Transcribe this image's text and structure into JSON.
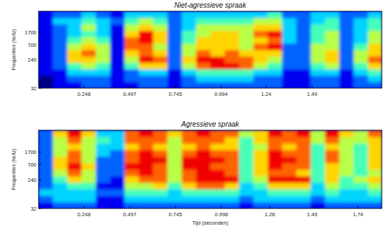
{
  "chart_data": [
    {
      "type": "heatmap",
      "title": "Niet-agressieve spraak",
      "y_label": "Frequenties (hertz)",
      "xlim": [
        0,
        1.87
      ],
      "xticks": [
        0.248,
        0.497,
        0.745,
        0.994,
        1.24,
        1.49
      ],
      "ylim": [
        32,
        8000
      ],
      "yticks": [
        32,
        240,
        700,
        1700
      ],
      "log": "y",
      "x_bins": [
        0,
        0.078,
        0.156,
        0.234,
        0.312,
        0.39,
        0.468,
        0.546,
        0.624,
        0.702,
        0.78,
        0.858,
        0.936,
        1.014,
        1.092,
        1.17,
        1.248,
        1.326,
        1.404,
        1.482,
        1.56,
        1.638,
        1.716,
        1.794,
        1.87
      ],
      "y_bins": [
        32,
        51,
        80,
        127,
        201,
        319,
        505,
        800,
        1267,
        2007,
        3180,
        5037,
        8000
      ],
      "zlim": [
        0,
        9
      ],
      "cells": [
        [
          0,
          1,
          1,
          2,
          2,
          1,
          1,
          2,
          2,
          1,
          2,
          2,
          2,
          2,
          2,
          2,
          2,
          1,
          1,
          2,
          2,
          1,
          2,
          2
        ],
        [
          0,
          1,
          2,
          2,
          2,
          1,
          2,
          2,
          2,
          1,
          2,
          3,
          3,
          3,
          3,
          2,
          2,
          1,
          1,
          2,
          2,
          1,
          2,
          3
        ],
        [
          1,
          1,
          3,
          3,
          3,
          1,
          2,
          3,
          3,
          1,
          3,
          4,
          4,
          4,
          4,
          3,
          3,
          1,
          1,
          3,
          3,
          1,
          3,
          4
        ],
        [
          1,
          2,
          4,
          5,
          4,
          1,
          4,
          6,
          6,
          2,
          5,
          7,
          8,
          8,
          7,
          5,
          4,
          2,
          2,
          4,
          5,
          2,
          4,
          6
        ],
        [
          1,
          2,
          6,
          6,
          5,
          1,
          5,
          8,
          7,
          2,
          6,
          8,
          8,
          7,
          7,
          6,
          5,
          2,
          2,
          5,
          6,
          2,
          5,
          7
        ],
        [
          1,
          2,
          6,
          7,
          5,
          1,
          6,
          7,
          6,
          2,
          5,
          7,
          6,
          7,
          6,
          6,
          6,
          2,
          2,
          5,
          6,
          2,
          5,
          6
        ],
        [
          1,
          2,
          5,
          6,
          5,
          1,
          7,
          7,
          5,
          2,
          5,
          6,
          6,
          6,
          5,
          7,
          8,
          2,
          2,
          5,
          5,
          2,
          4,
          6
        ],
        [
          1,
          2,
          4,
          5,
          4,
          1,
          7,
          8,
          6,
          2,
          4,
          6,
          6,
          6,
          5,
          6,
          7,
          3,
          2,
          4,
          5,
          2,
          3,
          5
        ],
        [
          1,
          2,
          3,
          4,
          3,
          1,
          6,
          8,
          6,
          2,
          4,
          5,
          6,
          6,
          5,
          7,
          8,
          3,
          2,
          4,
          5,
          2,
          3,
          5
        ],
        [
          1,
          2,
          3,
          5,
          3,
          1,
          5,
          6,
          5,
          2,
          3,
          5,
          5,
          5,
          5,
          6,
          6,
          3,
          2,
          4,
          4,
          2,
          3,
          4
        ],
        [
          1,
          3,
          3,
          4,
          3,
          2,
          4,
          5,
          4,
          2,
          3,
          4,
          4,
          4,
          4,
          5,
          5,
          3,
          2,
          3,
          4,
          2,
          3,
          4
        ],
        [
          1,
          2,
          2,
          3,
          2,
          1,
          3,
          3,
          3,
          2,
          3,
          3,
          3,
          3,
          3,
          3,
          4,
          2,
          2,
          3,
          3,
          2,
          2,
          3
        ]
      ]
    },
    {
      "type": "heatmap",
      "title": "Agressieve spraak",
      "y_label": "Frequenties (hertz)",
      "x_label": "Tijd (seconden)",
      "xlim": [
        0,
        1.87
      ],
      "xticks": [
        0.248,
        0.497,
        0.745,
        0.996,
        1.26,
        1.49,
        1.74
      ],
      "ylim": [
        32,
        8000
      ],
      "yticks": [
        32,
        240,
        700,
        1700
      ],
      "log": "y",
      "x_bins": [
        0,
        0.078,
        0.156,
        0.234,
        0.312,
        0.39,
        0.468,
        0.546,
        0.624,
        0.702,
        0.78,
        0.858,
        0.936,
        1.014,
        1.092,
        1.17,
        1.248,
        1.326,
        1.404,
        1.482,
        1.56,
        1.638,
        1.716,
        1.794,
        1.87
      ],
      "y_bins": [
        32,
        51,
        80,
        127,
        201,
        319,
        505,
        800,
        1267,
        2007,
        3180,
        5037,
        8000
      ],
      "zlim": [
        0,
        9
      ],
      "cells": [
        [
          1,
          2,
          2,
          2,
          1,
          1,
          2,
          2,
          2,
          2,
          2,
          2,
          2,
          2,
          1,
          2,
          2,
          2,
          2,
          1,
          2,
          2,
          2,
          2
        ],
        [
          2,
          3,
          3,
          3,
          1,
          1,
          3,
          3,
          3,
          3,
          3,
          3,
          3,
          3,
          2,
          3,
          3,
          3,
          3,
          2,
          3,
          3,
          3,
          3
        ],
        [
          3,
          3,
          3,
          3,
          2,
          2,
          4,
          4,
          4,
          3,
          4,
          4,
          4,
          4,
          3,
          3,
          4,
          4,
          4,
          3,
          4,
          3,
          3,
          4
        ],
        [
          2,
          3,
          4,
          4,
          1,
          1,
          5,
          5,
          6,
          4,
          6,
          7,
          7,
          6,
          3,
          4,
          6,
          6,
          6,
          3,
          5,
          4,
          4,
          5
        ],
        [
          2,
          4,
          6,
          5,
          2,
          1,
          6,
          7,
          7,
          5,
          7,
          8,
          8,
          8,
          4,
          5,
          8,
          8,
          8,
          4,
          6,
          4,
          5,
          6
        ],
        [
          2,
          5,
          7,
          5,
          2,
          2,
          7,
          8,
          7,
          5,
          7,
          8,
          8,
          7,
          4,
          6,
          7,
          7,
          6,
          4,
          6,
          5,
          4,
          5
        ],
        [
          2,
          6,
          8,
          6,
          2,
          2,
          8,
          8,
          7,
          5,
          8,
          8,
          7,
          7,
          4,
          6,
          8,
          7,
          7,
          4,
          6,
          5,
          4,
          6
        ],
        [
          2,
          6,
          7,
          5,
          2,
          2,
          7,
          8,
          8,
          5,
          8,
          8,
          8,
          7,
          4,
          6,
          8,
          8,
          7,
          4,
          7,
          5,
          4,
          6
        ],
        [
          2,
          5,
          7,
          5,
          3,
          2,
          7,
          8,
          7,
          5,
          7,
          8,
          7,
          7,
          4,
          6,
          8,
          7,
          7,
          4,
          7,
          5,
          4,
          6
        ],
        [
          2,
          5,
          6,
          5,
          3,
          3,
          6,
          7,
          6,
          5,
          6,
          7,
          6,
          6,
          4,
          5,
          7,
          6,
          7,
          4,
          6,
          5,
          4,
          6
        ],
        [
          2,
          5,
          7,
          5,
          4,
          3,
          7,
          7,
          7,
          5,
          7,
          7,
          7,
          6,
          4,
          6,
          7,
          7,
          7,
          5,
          7,
          5,
          5,
          6
        ],
        [
          2,
          6,
          8,
          6,
          3,
          3,
          7,
          8,
          7,
          6,
          7,
          8,
          7,
          7,
          5,
          6,
          8,
          7,
          8,
          5,
          8,
          6,
          5,
          7
        ]
      ]
    }
  ]
}
